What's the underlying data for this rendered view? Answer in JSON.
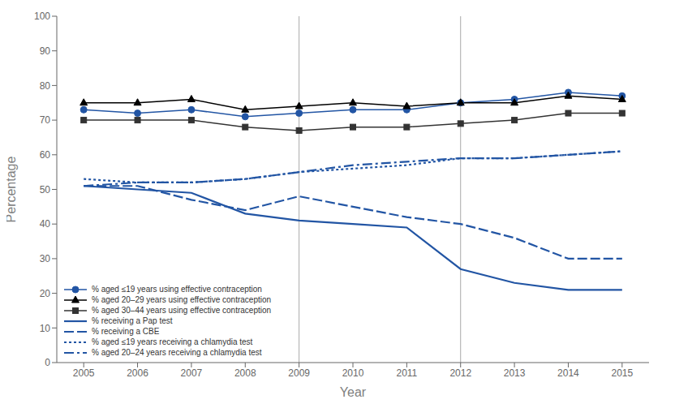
{
  "chart_data": {
    "type": "line",
    "xlabel": "Year",
    "ylabel": "Percentage",
    "x": [
      2005,
      2006,
      2007,
      2008,
      2009,
      2010,
      2011,
      2012,
      2013,
      2014,
      2015
    ],
    "xlim": [
      2004.5,
      2015.5
    ],
    "xticks": [
      2005,
      2006,
      2007,
      2008,
      2009,
      2010,
      2011,
      2012,
      2013,
      2014,
      2015
    ],
    "ylim": [
      0,
      100
    ],
    "yticks": [
      0,
      10,
      20,
      30,
      40,
      50,
      60,
      70,
      80,
      90,
      100
    ],
    "grid": false,
    "legend": "lower left",
    "vlines": [
      {
        "x": 2009,
        "color": "#aaaaaa"
      },
      {
        "x": 2012,
        "color": "#aaaaaa"
      }
    ],
    "series": [
      {
        "name": "% aged ≤19 years using effective contraception",
        "color": "#2255a4",
        "marker": "circle",
        "line_style": "solid",
        "values": [
          73,
          72,
          73,
          71,
          72,
          73,
          73,
          75,
          76,
          78,
          77
        ]
      },
      {
        "name": "% aged 20–29 years using effective contraception",
        "color": "#000000",
        "marker": "triangle",
        "line_style": "solid",
        "values": [
          75,
          75,
          76,
          73,
          74,
          75,
          74,
          75,
          75,
          77,
          76
        ]
      },
      {
        "name": "% aged 30–44 years using effective contraception",
        "color": "#333333",
        "marker": "square",
        "line_style": "solid",
        "values": [
          70,
          70,
          70,
          68,
          67,
          68,
          68,
          69,
          70,
          72,
          72
        ]
      },
      {
        "name": "% receiving a Pap test",
        "color": "#2255a4",
        "marker": "none",
        "line_style": "solid",
        "values": [
          51,
          50,
          49,
          43,
          41,
          40,
          39,
          27,
          23,
          21,
          21
        ]
      },
      {
        "name": "% receiving a CBE",
        "color": "#2255a4",
        "marker": "none",
        "line_style": "dashed",
        "values": [
          51,
          51,
          47,
          44,
          48,
          45,
          42,
          40,
          36,
          30,
          30
        ]
      },
      {
        "name": "% aged ≤19 years receiving a chlamydia test",
        "color": "#2255a4",
        "marker": "none",
        "line_style": "dotted",
        "values": [
          53,
          52,
          52,
          53,
          55,
          56,
          57,
          59,
          59,
          60,
          61
        ]
      },
      {
        "name": "% aged 20–24 years receiving a chlamydia test",
        "color": "#2255a4",
        "marker": "none",
        "line_style": "dashdot",
        "values": [
          51,
          52,
          52,
          53,
          55,
          57,
          58,
          59,
          59,
          60,
          61
        ]
      }
    ]
  }
}
